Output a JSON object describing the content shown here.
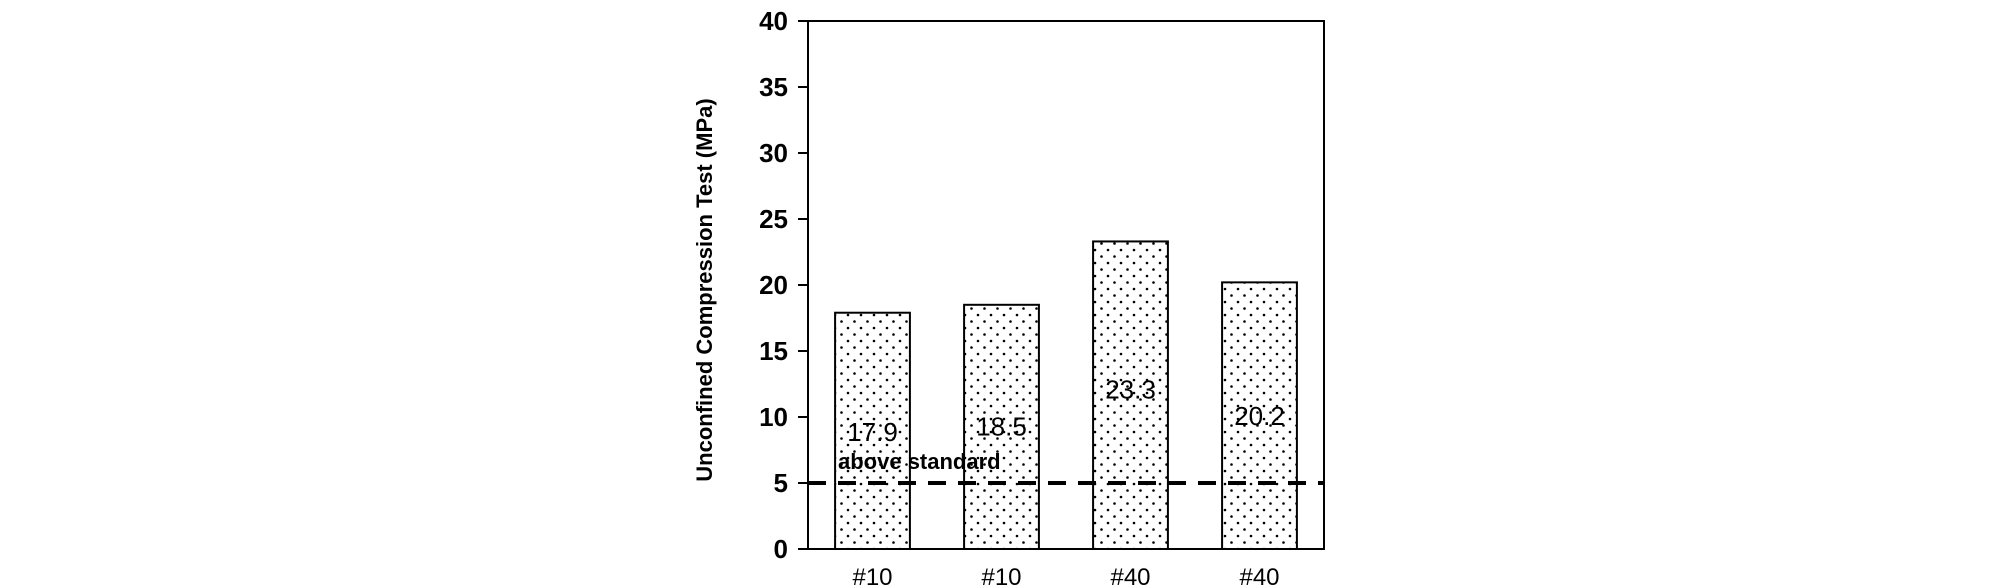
{
  "chart_data": {
    "type": "bar",
    "categories": [
      "#10",
      "#10",
      "#40",
      "#40"
    ],
    "values": [
      17.9,
      18.5,
      23.3,
      20.2
    ],
    "value_labels": [
      "17.9",
      "18.5",
      "23.3",
      "20.2"
    ],
    "title": "",
    "xlabel": "",
    "ylabel": "Unconfined Compression Test (MPa)",
    "ylim": [
      0,
      40
    ],
    "yticks": [
      0,
      5,
      10,
      15,
      20,
      25,
      30,
      35,
      40
    ],
    "grid": false,
    "legend": "none",
    "bar_fill": "dotted",
    "reference_line": {
      "value": 5,
      "style": "dashed",
      "label": "above standard"
    },
    "colors": {
      "bar_fill": "#ffffff",
      "bar_stroke": "#000000",
      "dots": "#000000",
      "axis": "#000000"
    }
  }
}
